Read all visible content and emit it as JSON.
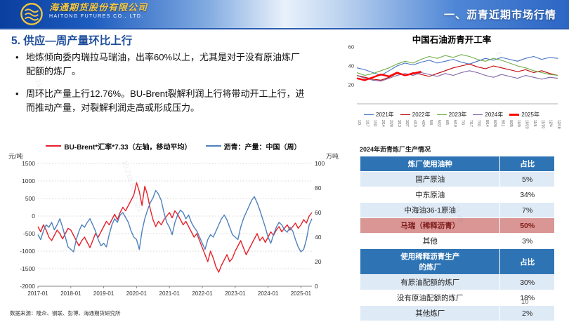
{
  "header": {
    "company_cn": "海通期货股份有限公司",
    "company_en": "HAITONG FUTURES CO., LTD.",
    "section_title": "一、沥青近期市场行情"
  },
  "slide": {
    "title": "5. 供应—周产量环比上行",
    "bullets": [
      "地炼倾向委内瑞拉马瑞油，出率60%以上，尤其是对于没有原油炼厂配额的炼厂。",
      "周环比产量上行12.76%。BU-Brent裂解利润上行将带动开工上行，进而推动产量，对裂解利润走高或形成压力。"
    ],
    "source": "数据来源：隆众、钢联、彭博、海通期货研究所",
    "page": "10"
  },
  "chart_data": [
    {
      "type": "line",
      "title": "",
      "legend": [
        {
          "label": "BU-Brent*汇率*7.33（左轴，移动平均）",
          "color": "#e62129"
        },
        {
          "label": "沥青：产量：中国（周）",
          "color": "#4f81bd"
        }
      ],
      "left_axis": {
        "unit": "元/吨",
        "ticks": [
          1500,
          1000,
          500,
          0,
          -500,
          -1000,
          -1500,
          -2000
        ],
        "range": [
          -2000,
          1500
        ]
      },
      "right_axis": {
        "unit": "万吨",
        "ticks": [
          100,
          80,
          60,
          40,
          20,
          0
        ],
        "range": [
          0,
          100
        ]
      },
      "x_labels": [
        "2017-01",
        "2018-01",
        "2019-01",
        "2020-01",
        "2021-01",
        "2022-01",
        "2023-01",
        "2024-01",
        "2025-01"
      ],
      "series": [
        {
          "name": "BU-Brent*汇率*7.33（左轴，移动平均）",
          "axis": "left",
          "color": "#e62129",
          "values": [
            -300,
            -450,
            -250,
            -400,
            -600,
            -700,
            -550,
            -400,
            -500,
            -650,
            -500,
            -350,
            -400,
            -550,
            -700,
            -850,
            -700,
            -600,
            -750,
            -900,
            -700,
            -500,
            -600,
            -450,
            -300,
            -150,
            -250,
            -100,
            50,
            -100,
            100,
            250,
            150,
            300,
            450,
            600,
            950,
            700,
            300,
            850,
            600,
            200,
            -100,
            -300,
            -150,
            -250,
            -100,
            0,
            100,
            -50,
            150,
            50,
            -100,
            -250,
            -150,
            -300,
            -450,
            -600,
            -500,
            -700,
            -900,
            -1100,
            -1300,
            -1000,
            -1200,
            -1450,
            -1600,
            -1400,
            -1250,
            -1100,
            -1300,
            -1200,
            -1000,
            -850,
            -700,
            -900,
            -1100,
            -950,
            -800,
            -650,
            -500,
            -700,
            -600,
            -750,
            -600,
            -450,
            -550,
            -400,
            -300,
            -450,
            -350,
            -250,
            -400,
            -300,
            -200,
            -350,
            -250,
            -100,
            -200,
            0,
            100
          ]
        },
        {
          "name": "沥青：产量：中国（周）",
          "axis": "right",
          "color": "#4f81bd",
          "values": [
            42,
            38,
            45,
            50,
            48,
            52,
            46,
            50,
            55,
            48,
            40,
            32,
            30,
            28,
            38,
            45,
            50,
            48,
            52,
            55,
            50,
            45,
            38,
            33,
            35,
            32,
            42,
            50,
            55,
            52,
            58,
            60,
            56,
            52,
            45,
            40,
            38,
            30,
            45,
            55,
            62,
            68,
            72,
            78,
            75,
            70,
            60,
            52,
            48,
            42,
            52,
            58,
            62,
            60,
            55,
            58,
            52,
            48,
            45,
            40,
            35,
            30,
            38,
            42,
            40,
            45,
            50,
            55,
            58,
            54,
            48,
            42,
            40,
            38,
            48,
            55,
            60,
            65,
            70,
            73,
            68,
            62,
            55,
            48,
            40,
            35,
            42,
            48,
            52,
            50,
            46,
            44,
            48,
            45,
            38,
            32,
            28,
            30,
            38,
            50,
            55
          ]
        }
      ]
    },
    {
      "type": "line",
      "title": "中国石油沥青开工率",
      "y_ticks": [
        60,
        40,
        20
      ],
      "y_range": [
        0,
        60
      ],
      "x_labels": [
        "1/3",
        "1/17",
        "1/31",
        "2/14",
        "2/28",
        "3/13",
        "3/27",
        "4/10",
        "4/24",
        "5/8",
        "5/22",
        "6/5",
        "6/19",
        "7/3",
        "7/17",
        "7/31",
        "8/14",
        "8/28",
        "9/11",
        "9/25",
        "10/9",
        "10/23",
        "11/6",
        "11/20",
        "12/4",
        "12/18"
      ],
      "series": [
        {
          "name": "2021年",
          "color": "#4472c4",
          "width": 1.1,
          "values": [
            38,
            36,
            33,
            30,
            35,
            40,
            43,
            41,
            44,
            46,
            43,
            45,
            47,
            44,
            42,
            45,
            48,
            46,
            49,
            47,
            45,
            48,
            50,
            47,
            49,
            48
          ]
        },
        {
          "name": "2022年",
          "color": "#c00000",
          "width": 1.1,
          "values": [
            30,
            28,
            26,
            25,
            28,
            32,
            30,
            33,
            31,
            29,
            32,
            35,
            38,
            40,
            42,
            39,
            37,
            40,
            38,
            36,
            34,
            36,
            33,
            35,
            32,
            30
          ]
        },
        {
          "name": "2023年",
          "color": "#70ad47",
          "width": 1.1,
          "values": [
            33,
            30,
            32,
            35,
            38,
            42,
            45,
            43,
            47,
            50,
            48,
            51,
            49,
            52,
            50,
            47,
            45,
            48,
            46,
            43,
            40,
            38,
            35,
            33,
            31,
            30
          ]
        },
        {
          "name": "2024年",
          "color": "#8064a2",
          "width": 1.1,
          "values": [
            30,
            27,
            25,
            24,
            27,
            30,
            32,
            30,
            33,
            31,
            29,
            32,
            30,
            33,
            35,
            33,
            30,
            28,
            31,
            29,
            27,
            30,
            28,
            26,
            28,
            27
          ]
        },
        {
          "name": "2025年",
          "color": "#ff0000",
          "width": 2.4,
          "values": [
            27,
            25,
            28,
            31,
            29,
            33,
            30,
            32,
            34
          ]
        }
      ]
    }
  ],
  "table": {
    "title": "2024年沥青炼厂生产情况",
    "col1_header": "炼厂使用油种",
    "col2_header": "占比",
    "rows1": [
      {
        "label": "国产原油",
        "value": "5%"
      },
      {
        "label": "中东原油",
        "value": "34%"
      },
      {
        "label": "中海油36-1原油",
        "value": "7%"
      },
      {
        "label": "马瑞（稀释沥青）",
        "value": "50%"
      },
      {
        "label": "其他",
        "value": "3%"
      }
    ],
    "col1_header2": "使用稀释沥青生产\n的炼厂",
    "col2_header2": "占比",
    "rows2": [
      {
        "label": "有原油配额的炼厂",
        "value": "30%"
      },
      {
        "label": "没有原油配额的炼厂",
        "value": "18%"
      },
      {
        "label": "其他炼厂",
        "value": "2%"
      }
    ]
  },
  "watermarks": [
    "15:06",
    "10.218-8C_s_gj1",
    "11:49",
    "E5_2"
  ]
}
